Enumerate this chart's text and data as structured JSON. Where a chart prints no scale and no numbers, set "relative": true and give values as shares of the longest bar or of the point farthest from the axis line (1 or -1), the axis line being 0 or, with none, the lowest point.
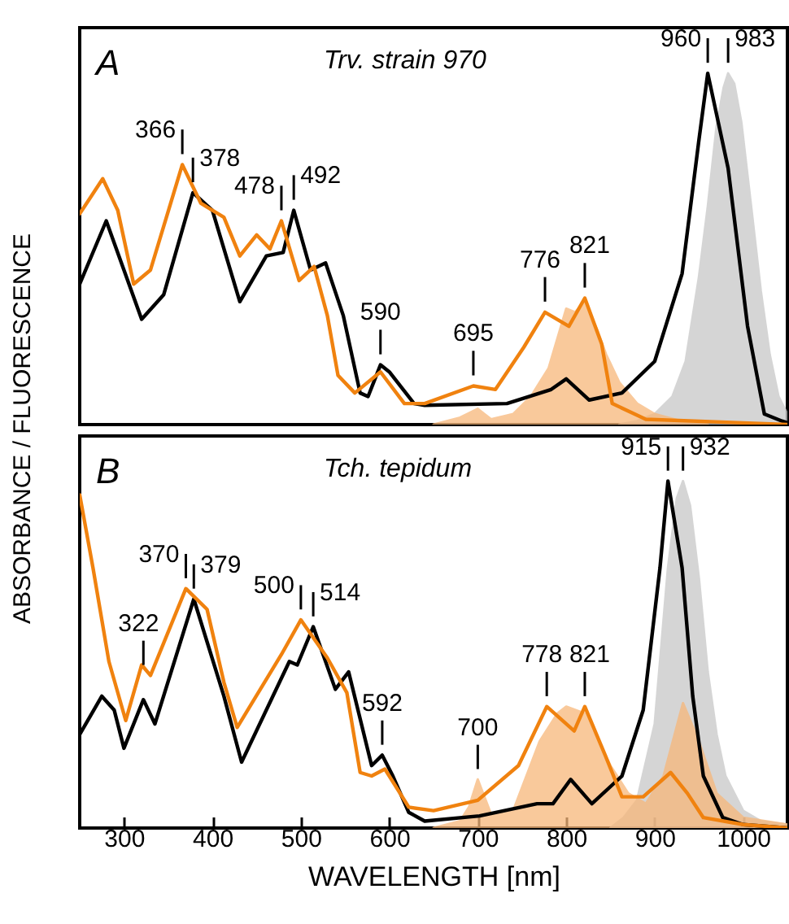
{
  "chart_data": [
    {
      "type": "line",
      "relative": true,
      "ylabel": "ABSORBANCE / FLUORESCENCE",
      "xlim": [
        250,
        1050
      ],
      "tick_labels": false,
      "annotations": [
        "A",
        "Trv. strain 970",
        {
          "text": "366",
          "x": 366,
          "y": 0.74
        },
        {
          "text": "378",
          "x": 378,
          "y": 0.66
        },
        {
          "text": "478",
          "x": 478,
          "y": 0.58
        },
        {
          "text": "492",
          "x": 492,
          "y": 0.61
        },
        {
          "text": "590",
          "x": 590,
          "y": 0.17
        },
        {
          "text": "695",
          "x": 695,
          "y": 0.11
        },
        {
          "text": "776",
          "x": 776,
          "y": 0.32
        },
        {
          "text": "821",
          "x": 821,
          "y": 0.36
        },
        {
          "text": "960",
          "x": 960,
          "y": 1.0
        },
        {
          "text": "983",
          "x": 983,
          "y": 1.0
        }
      ],
      "series": [
        {
          "type": "area",
          "color": "#c8c8c8",
          "x": [
            860,
            880,
            900,
            920,
            935,
            950,
            960,
            970,
            978,
            983,
            990,
            998,
            1010,
            1020,
            1030,
            1040,
            1050
          ],
          "values": [
            0,
            0.01,
            0.03,
            0.08,
            0.18,
            0.42,
            0.62,
            0.85,
            0.96,
            1.0,
            0.97,
            0.86,
            0.6,
            0.38,
            0.2,
            0.08,
            0.03
          ]
        },
        {
          "type": "area",
          "color": "#f7b77a",
          "x": [
            650,
            680,
            700,
            715,
            740,
            760,
            780,
            800,
            810,
            821,
            835,
            845,
            860,
            880,
            900,
            930,
            960
          ],
          "values": [
            0,
            0.02,
            0.045,
            0.015,
            0.03,
            0.08,
            0.16,
            0.33,
            0.32,
            0.35,
            0.27,
            0.2,
            0.12,
            0.06,
            0.03,
            0.01,
            0
          ]
        },
        {
          "type": "line",
          "color": "#000000",
          "x": [
            250,
            280,
            320,
            345,
            378,
            400,
            431,
            461,
            480,
            492,
            511,
            528,
            548,
            567,
            576,
            590,
            600,
            628,
            640,
            733,
            783,
            800,
            826,
            863,
            900,
            931,
            950,
            960,
            983,
            1005,
            1024,
            1044,
            1050
          ],
          "values": [
            0.4,
            0.58,
            0.3,
            0.37,
            0.66,
            0.61,
            0.35,
            0.48,
            0.49,
            0.61,
            0.44,
            0.46,
            0.31,
            0.09,
            0.08,
            0.17,
            0.15,
            0.06,
            0.055,
            0.06,
            0.1,
            0.13,
            0.07,
            0.09,
            0.18,
            0.43,
            0.81,
            1.0,
            0.73,
            0.28,
            0.03,
            0.01,
            0.005
          ]
        },
        {
          "type": "line",
          "color": "#f0820f",
          "x": [
            250,
            276,
            293,
            311,
            330,
            366,
            387,
            413,
            431,
            450,
            465,
            478,
            498,
            515,
            530,
            542,
            561,
            590,
            617,
            640,
            695,
            720,
            752,
            776,
            803,
            821,
            840,
            852,
            890,
            1000,
            1050
          ],
          "values": [
            0.6,
            0.7,
            0.61,
            0.4,
            0.44,
            0.74,
            0.63,
            0.59,
            0.48,
            0.54,
            0.5,
            0.58,
            0.41,
            0.45,
            0.31,
            0.14,
            0.09,
            0.15,
            0.06,
            0.06,
            0.11,
            0.1,
            0.22,
            0.32,
            0.28,
            0.36,
            0.23,
            0.06,
            0.015,
            0.005,
            0
          ]
        }
      ]
    },
    {
      "type": "line",
      "relative": true,
      "xlabel": "WAVELENGTH [nm]",
      "xlim": [
        250,
        1050
      ],
      "xticks": [
        300,
        400,
        500,
        600,
        700,
        800,
        900,
        1000
      ],
      "tick_labels": "x",
      "annotations": [
        "B",
        "Tch. tepidum",
        {
          "text": "322",
          "x": 322,
          "y": 0.44
        },
        {
          "text": "370",
          "x": 370,
          "y": 0.69
        },
        {
          "text": "379",
          "x": 379,
          "y": 0.66
        },
        {
          "text": "500",
          "x": 500,
          "y": 0.6
        },
        {
          "text": "514",
          "x": 514,
          "y": 0.58
        },
        {
          "text": "592",
          "x": 592,
          "y": 0.21
        },
        {
          "text": "700",
          "x": 700,
          "y": 0.14
        },
        {
          "text": "778",
          "x": 778,
          "y": 0.35
        },
        {
          "text": "821",
          "x": 821,
          "y": 0.35
        },
        {
          "text": "915",
          "x": 915,
          "y": 1.0
        },
        {
          "text": "932",
          "x": 932,
          "y": 1.0
        }
      ],
      "series": [
        {
          "type": "area",
          "color": "#c8c8c8",
          "x": [
            850,
            865,
            880,
            900,
            915,
            925,
            932,
            940,
            950,
            960,
            970,
            980,
            1000,
            1020,
            1050
          ],
          "values": [
            0,
            0.03,
            0.08,
            0.3,
            0.75,
            0.95,
            1.0,
            0.93,
            0.72,
            0.45,
            0.27,
            0.15,
            0.05,
            0.02,
            0.01
          ]
        },
        {
          "type": "area",
          "color": "#f7b77a",
          "x": [
            650,
            680,
            690,
            700,
            715,
            740,
            770,
            790,
            800,
            821,
            850,
            870,
            890,
            910,
            932,
            950,
            970,
            1000,
            1050
          ],
          "values": [
            0,
            0.02,
            0.06,
            0.14,
            0.04,
            0.05,
            0.25,
            0.33,
            0.35,
            0.33,
            0.18,
            0.1,
            0.07,
            0.15,
            0.36,
            0.25,
            0.1,
            0.03,
            0.01
          ]
        },
        {
          "type": "line",
          "color": "#000000",
          "x": [
            250,
            275,
            289,
            300,
            322,
            335,
            379,
            413,
            433,
            487,
            496,
            514,
            539,
            554,
            580,
            592,
            604,
            622,
            640,
            702,
            767,
            785,
            805,
            829,
            863,
            887,
            906,
            915,
            931,
            943,
            955,
            977,
            1000,
            1050
          ],
          "values": [
            0.27,
            0.38,
            0.34,
            0.23,
            0.37,
            0.3,
            0.66,
            0.38,
            0.19,
            0.48,
            0.47,
            0.58,
            0.4,
            0.45,
            0.18,
            0.21,
            0.15,
            0.045,
            0.02,
            0.035,
            0.07,
            0.07,
            0.14,
            0.07,
            0.15,
            0.34,
            0.75,
            1.0,
            0.75,
            0.38,
            0.15,
            0.03,
            0.01,
            0
          ]
        },
        {
          "type": "line",
          "color": "#f0820f",
          "x": [
            250,
            265,
            283,
            302,
            320,
            330,
            370,
            394,
            413,
            428,
            478,
            500,
            530,
            552,
            567,
            580,
            595,
            622,
            650,
            700,
            746,
            778,
            809,
            821,
            844,
            863,
            887,
            918,
            937,
            955,
            1000,
            1050
          ],
          "values": [
            0.96,
            0.75,
            0.48,
            0.31,
            0.47,
            0.44,
            0.69,
            0.63,
            0.42,
            0.29,
            0.5,
            0.6,
            0.49,
            0.39,
            0.16,
            0.15,
            0.17,
            0.06,
            0.05,
            0.08,
            0.18,
            0.35,
            0.28,
            0.35,
            0.21,
            0.09,
            0.09,
            0.16,
            0.1,
            0.03,
            0.01,
            0
          ]
        }
      ]
    }
  ]
}
